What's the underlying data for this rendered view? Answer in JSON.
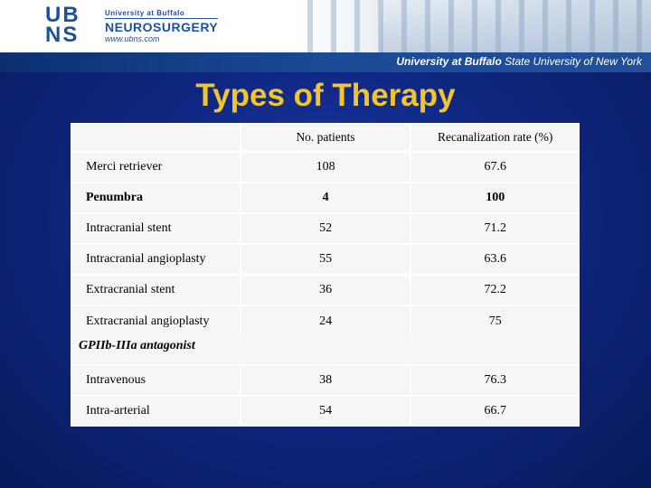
{
  "header": {
    "logo_line1": "UB",
    "logo_line2": "NS",
    "org_line1": "University at Buffalo",
    "org_line2": "NEUROSURGERY",
    "url": "www.ubns.com",
    "bar_text": "University at Buffalo",
    "bar_subtext": "State University of New York"
  },
  "title": "Types of Therapy",
  "table": {
    "columns": [
      "",
      "No. patients",
      "Recanalization rate (%)"
    ],
    "rows": [
      {
        "therapy": "Merci retriever",
        "patients": "108",
        "rate": "67.6"
      },
      {
        "therapy": "Penumbra",
        "patients": "4",
        "rate": "100"
      },
      {
        "therapy": "Intracranial stent",
        "patients": "52",
        "rate": "71.2"
      },
      {
        "therapy": "Intracranial angioplasty",
        "patients": "55",
        "rate": "63.6"
      },
      {
        "therapy": "Extracranial stent",
        "patients": "36",
        "rate": "72.2"
      },
      {
        "therapy": "Extracranial angioplasty",
        "patients": "24",
        "rate": "75"
      }
    ],
    "group_label": "GPIIb-IIIa antagonist",
    "group_rows": [
      {
        "therapy": "Intravenous",
        "patients": "38",
        "rate": "76.3"
      },
      {
        "therapy": "Intra-arterial",
        "patients": "54",
        "rate": "66.7"
      }
    ]
  },
  "colors": {
    "background": "#0f2680",
    "title": "#f2c42e",
    "table_bg": "#f6f6f6",
    "brand": "#1d4f9c"
  }
}
